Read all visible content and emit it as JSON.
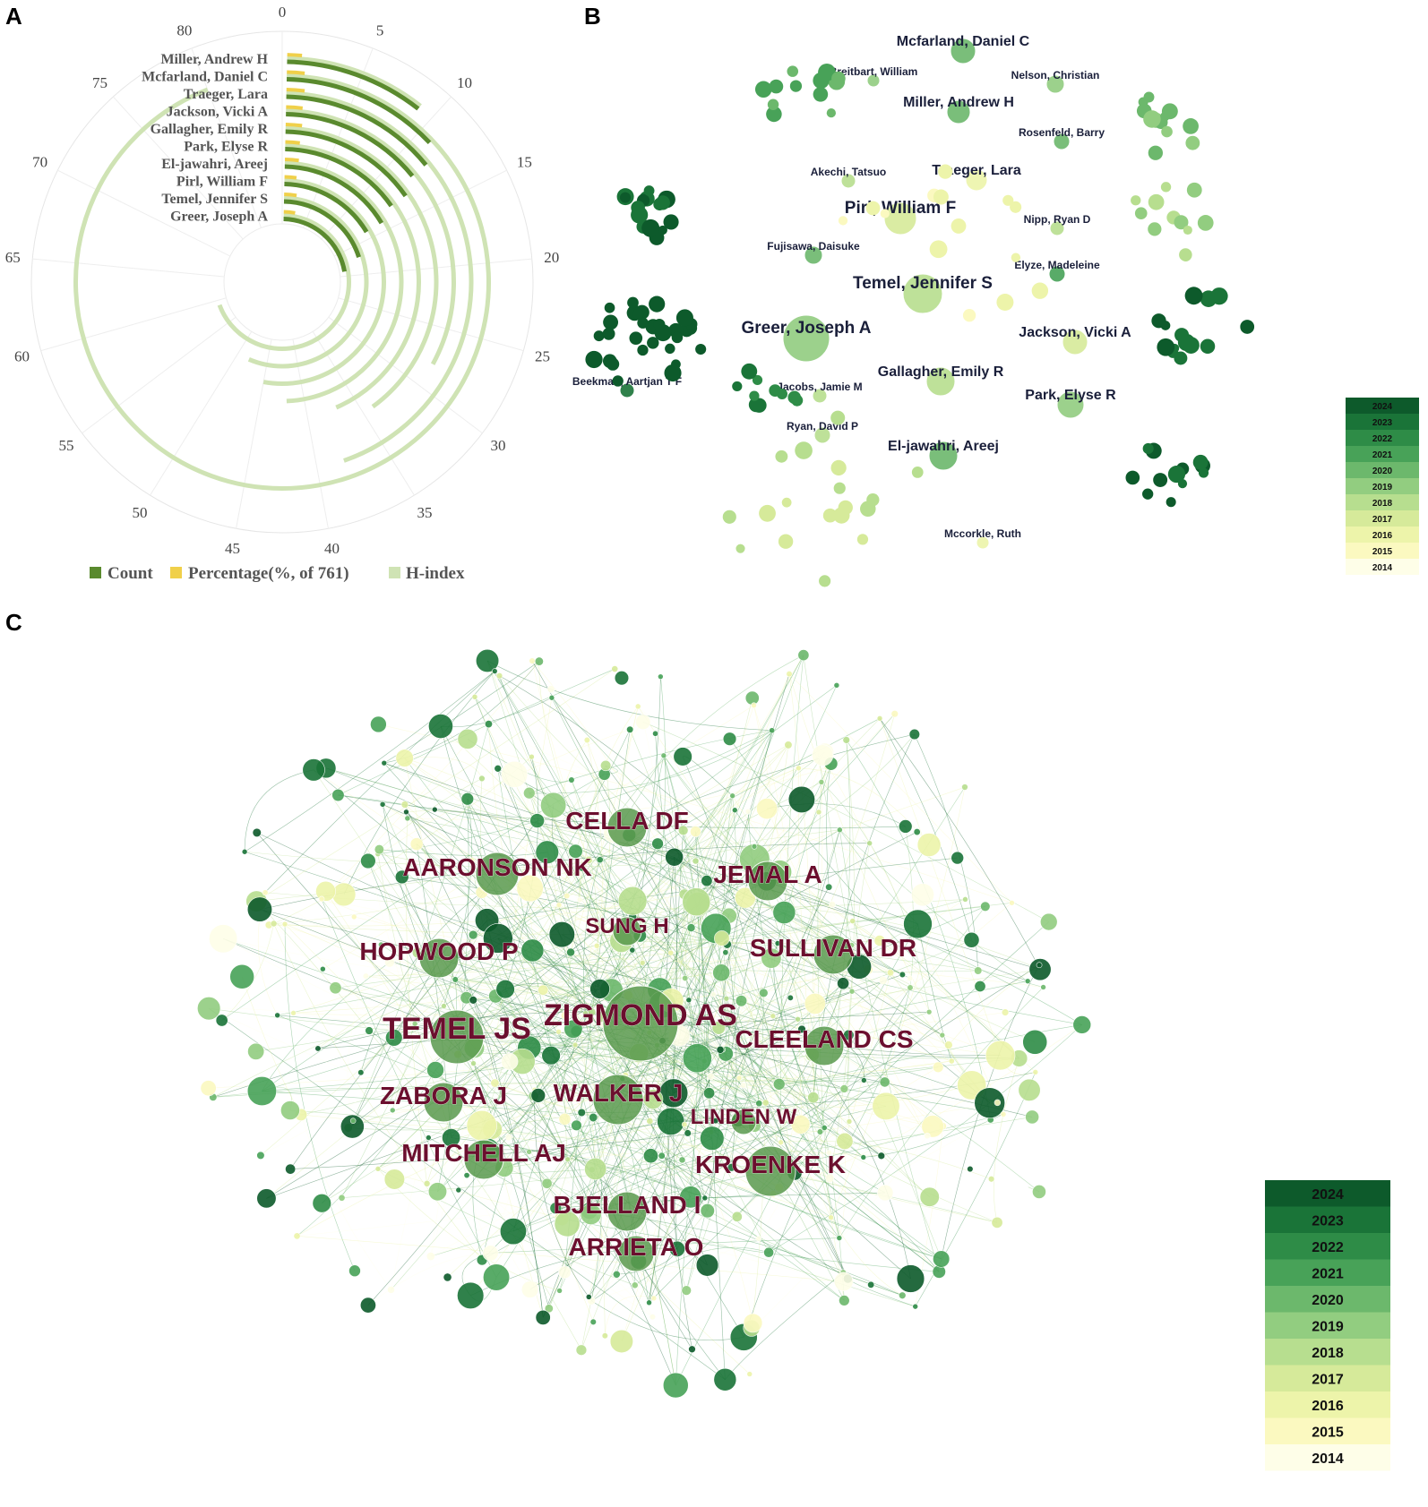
{
  "panels": {
    "a": "A",
    "b": "B",
    "c": "C"
  },
  "colors": {
    "count": "#5a8a2e",
    "percentage": "#f0d04a",
    "hindex": "#cfe3b4",
    "node_label_b": "#1a1f3a",
    "node_label_c": "#6b0f2e",
    "year_scale": [
      "#fefee8",
      "#fbf9c0",
      "#edf4aa",
      "#d6ea9a",
      "#b7de8f",
      "#92cd80",
      "#6cb86c",
      "#48a258",
      "#2e8c47",
      "#1a7438",
      "#0d5a2b"
    ]
  },
  "chart_data": [
    {
      "type": "radial-bar",
      "panel": "A",
      "authors": [
        "Miller, Andrew H",
        "Mcfarland, Daniel C",
        "Traeger, Lara",
        "Jackson, Vicki A",
        "Gallagher, Emily R",
        "Park, Elyse R",
        "El-jawahri, Areej",
        "Pirl, William F",
        "Temel, Jennifer S",
        "Greer, Joseph A"
      ],
      "series": [
        {
          "name": "Count",
          "values": [
            9,
            11,
            12,
            12,
            13,
            13,
            14,
            14,
            17,
            19
          ]
        },
        {
          "name": "Percentage(%, of 761)",
          "values": [
            1.18,
            1.45,
            1.58,
            1.58,
            1.71,
            1.71,
            1.84,
            1.84,
            2.23,
            2.5
          ]
        },
        {
          "name": "H-index",
          "values": [
            9,
            80,
            38,
            28,
            34,
            37,
            42,
            45,
            48,
            59
          ]
        }
      ],
      "angular_ticks": [
        "0",
        "5",
        "10",
        "15",
        "20",
        "25",
        "30",
        "35",
        "40",
        "45",
        "50",
        "55",
        "60",
        "65",
        "70",
        "75",
        "80"
      ],
      "angular_range": [
        0,
        85
      ],
      "legend": "bottom"
    },
    {
      "type": "network",
      "panel": "B",
      "labels": [
        {
          "text": "Mcfarland, Daniel C",
          "size": "m",
          "year": 2020
        },
        {
          "text": "Breitbart, William",
          "size": "s",
          "year": 2019
        },
        {
          "text": "Nelson, Christian",
          "size": "s",
          "year": 2019
        },
        {
          "text": "Miller, Andrew H",
          "size": "m",
          "year": 2020
        },
        {
          "text": "Rosenfeld, Barry",
          "size": "s",
          "year": 2020
        },
        {
          "text": "Akechi, Tatsuo",
          "size": "s",
          "year": 2018
        },
        {
          "text": "Traeger, Lara",
          "size": "m",
          "year": 2016
        },
        {
          "text": "Pirl, William F",
          "size": "l",
          "year": 2017
        },
        {
          "text": "Nipp, Ryan D",
          "size": "s",
          "year": 2018
        },
        {
          "text": "Fujisawa, Daisuke",
          "size": "s",
          "year": 2020
        },
        {
          "text": "Elyze, Madeleine",
          "size": "s",
          "year": 2021
        },
        {
          "text": "Temel, Jennifer S",
          "size": "l",
          "year": 2018
        },
        {
          "text": "Greer, Joseph A",
          "size": "l",
          "year": 2019
        },
        {
          "text": "Jackson, Vicki A",
          "size": "m",
          "year": 2017
        },
        {
          "text": "Beekman, Aartjan T F",
          "size": "s",
          "year": 2023
        },
        {
          "text": "Jacobs, Jamie M",
          "size": "s",
          "year": 2018
        },
        {
          "text": "Gallagher, Emily R",
          "size": "m",
          "year": 2018
        },
        {
          "text": "Park, Elyse R",
          "size": "m",
          "year": 2019
        },
        {
          "text": "Ryan, David P",
          "size": "s",
          "year": 2018
        },
        {
          "text": "El-jawahri, Areej",
          "size": "m",
          "year": 2020
        },
        {
          "text": "Mccorkle, Ruth",
          "size": "s",
          "year": 2016
        }
      ],
      "legend": {
        "title": "",
        "years": [
          "2024",
          "2023",
          "2022",
          "2021",
          "2020",
          "2019",
          "2018",
          "2017",
          "2016",
          "2015",
          "2014"
        ],
        "placement": "right"
      }
    },
    {
      "type": "network",
      "panel": "C",
      "labels": [
        {
          "text": "CELLA DF",
          "size": "l"
        },
        {
          "text": "AARONSON NK",
          "size": "l"
        },
        {
          "text": "JEMAL A",
          "size": "l"
        },
        {
          "text": "SUNG H",
          "size": "m"
        },
        {
          "text": "HOPWOOD P",
          "size": "l"
        },
        {
          "text": "SULLIVAN DR",
          "size": "l"
        },
        {
          "text": "ZIGMOND AS",
          "size": "xl"
        },
        {
          "text": "TEMEL JS",
          "size": "xl"
        },
        {
          "text": "CLEELAND CS",
          "size": "l"
        },
        {
          "text": "ZABORA J",
          "size": "l"
        },
        {
          "text": "WALKER J",
          "size": "l"
        },
        {
          "text": "LINDEN W",
          "size": "m"
        },
        {
          "text": "MITCHELL AJ",
          "size": "l"
        },
        {
          "text": "KROENKE K",
          "size": "l"
        },
        {
          "text": "BJELLAND I",
          "size": "l"
        },
        {
          "text": "ARRIETA O",
          "size": "l"
        }
      ],
      "legend": {
        "title": "",
        "years": [
          "2024",
          "2023",
          "2022",
          "2021",
          "2020",
          "2019",
          "2018",
          "2017",
          "2016",
          "2015",
          "2014"
        ],
        "placement": "right"
      }
    }
  ]
}
